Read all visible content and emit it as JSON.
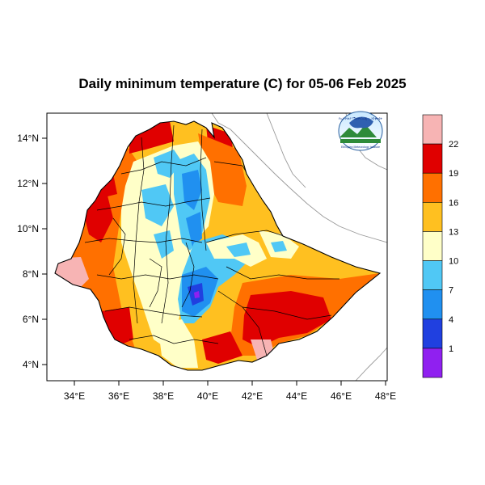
{
  "title": "Daily minimum temperature (C) for 05-06 Feb 2025",
  "lat_labels": [
    "14°N",
    "12°N",
    "10°N",
    "8°N",
    "6°N",
    "4°N"
  ],
  "lon_labels": [
    "34°E",
    "36°E",
    "38°E",
    "40°E",
    "42°E",
    "44°E",
    "46°E",
    "48°E"
  ],
  "colorbar": {
    "colors": [
      "#f7b4b4",
      "#e00000",
      "#ff7000",
      "#ffc020",
      "#ffffc8",
      "#50c8f5",
      "#2090f0",
      "#2040e0",
      "#9020f0"
    ],
    "labels": [
      "22",
      "19",
      "16",
      "13",
      "10",
      "7",
      "4",
      "1"
    ]
  },
  "logo": {
    "arc_text": "የኢትዮጵያ ሜቲዎሮሎጂ ኢንስቲትዩት",
    "caption": "Ethiopian Meteorology Institute"
  },
  "ocean_color": "#ffffff",
  "land_background": "#ffffff"
}
